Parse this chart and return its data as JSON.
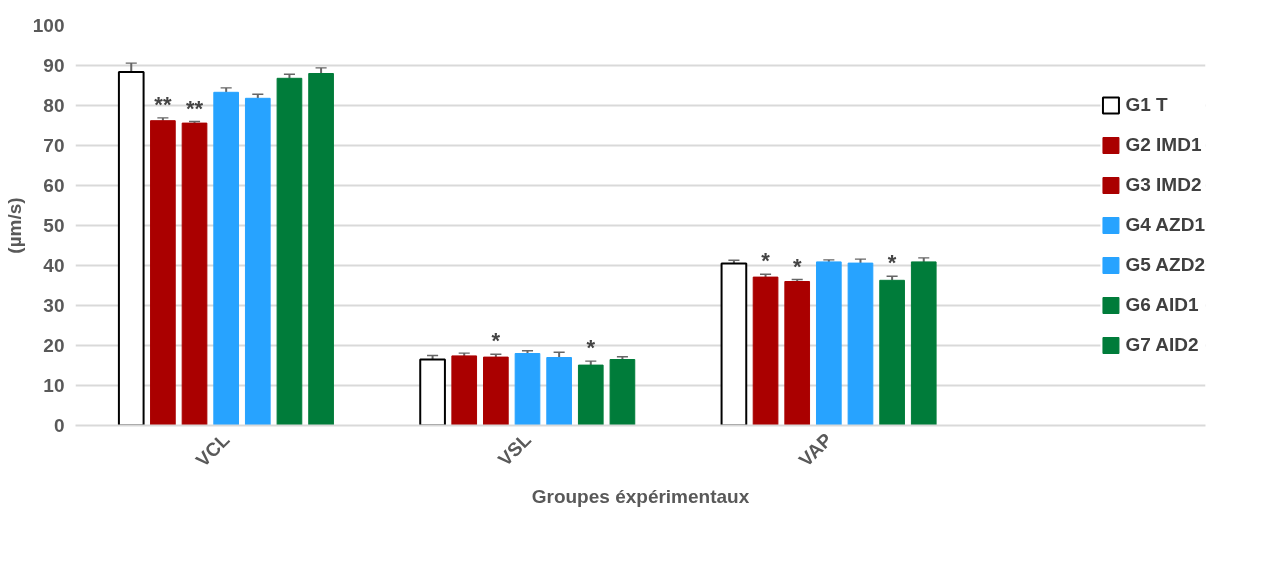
{
  "chart_data": {
    "type": "bar",
    "xlabel": "Groupes éxpérimentaux",
    "ylabel": "(µm/s)",
    "categories": [
      "VCL",
      "VSL",
      "VAP"
    ],
    "series": [
      {
        "name": "G1 T",
        "color": "#ffffff",
        "values": [
          88.4,
          16.5,
          40.5
        ],
        "errors": [
          2.2,
          1.0,
          0.8
        ]
      },
      {
        "name": "G2 IMD1",
        "color": "#aa0000",
        "values": [
          76.2,
          17.4,
          37.1
        ],
        "errors": [
          0.7,
          0.7,
          0.7
        ],
        "value_labels": [
          "**",
          null,
          "*"
        ]
      },
      {
        "name": "G3 IMD2",
        "color": "#aa0000",
        "values": [
          75.6,
          17.1,
          36.0
        ],
        "errors": [
          0.4,
          0.7,
          0.5
        ],
        "value_labels": [
          "**",
          "*",
          "*"
        ]
      },
      {
        "name": "G4 AZD1",
        "color": "#27a3ff",
        "values": [
          83.3,
          18.0,
          40.9
        ],
        "errors": [
          1.1,
          0.7,
          0.5
        ]
      },
      {
        "name": "G5 AZD2",
        "color": "#27a3ff",
        "values": [
          81.8,
          17.0,
          40.6
        ],
        "errors": [
          1.0,
          1.3,
          1.0
        ]
      },
      {
        "name": "G6 AID1",
        "color": "#007c3a",
        "values": [
          86.8,
          15.1,
          36.3
        ],
        "errors": [
          1.0,
          1.0,
          1.0
        ],
        "value_labels": [
          null,
          "*",
          "*"
        ]
      },
      {
        "name": "G7 AID2",
        "color": "#007c3a",
        "values": [
          88.0,
          16.5,
          40.9
        ],
        "errors": [
          1.4,
          0.7,
          1.0
        ]
      }
    ],
    "ylim": [
      0,
      100
    ],
    "yticks": [
      0,
      10,
      20,
      30,
      40,
      50,
      60,
      70,
      80,
      90,
      100
    ],
    "grid": "y",
    "legend": "right"
  }
}
